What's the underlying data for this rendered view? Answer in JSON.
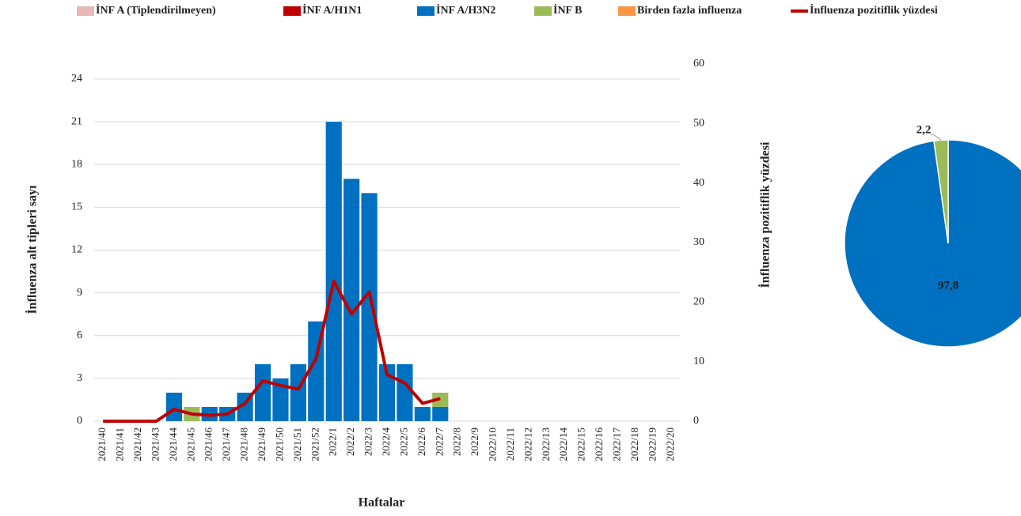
{
  "chart_data": [
    {
      "type": "bar-line",
      "x_label": "Haftalar",
      "y_label": "İnfluenza alt tipleri sayı",
      "y2_label": "İnfluenza pozitiflik yüzdesi",
      "categories": [
        "2021/40",
        "2021/41",
        "2021/42",
        "2021/43",
        "2021/44",
        "2021/45",
        "2021/46",
        "2021/47",
        "2021/48",
        "2021/49",
        "2021/50",
        "2021/51",
        "2021/52",
        "2022/1",
        "2022/2",
        "2022/3",
        "2022/4",
        "2022/5",
        "2022/6",
        "2022/7",
        "2022/8",
        "2022/9",
        "2022/10",
        "2022/11",
        "2022/12",
        "2022/13",
        "2022/14",
        "2022/15",
        "2022/16",
        "2022/17",
        "2022/18",
        "2022/19",
        "2022/20"
      ],
      "series": [
        {
          "name": "İNF A (Tiplendirilmeyen)",
          "color": "#e6b9b8",
          "values": [
            0,
            0,
            0,
            0,
            0,
            0,
            0,
            0,
            0,
            0,
            0,
            0,
            0,
            0,
            0,
            0,
            0,
            0,
            0,
            0,
            null,
            null,
            null,
            null,
            null,
            null,
            null,
            null,
            null,
            null,
            null,
            null,
            null
          ]
        },
        {
          "name": "İNF A/H1N1",
          "color": "#c00000",
          "values": [
            0,
            0,
            0,
            0,
            0,
            0,
            0,
            0,
            0,
            0,
            0,
            0,
            0,
            0,
            0,
            0,
            0,
            0,
            0,
            0,
            null,
            null,
            null,
            null,
            null,
            null,
            null,
            null,
            null,
            null,
            null,
            null,
            null
          ]
        },
        {
          "name": "İNF A/H3N2",
          "color": "#0070c0",
          "values": [
            0,
            0,
            0,
            0,
            2,
            0,
            1,
            1,
            2,
            4,
            3,
            4,
            7,
            21,
            17,
            16,
            4,
            4,
            1,
            1,
            null,
            null,
            null,
            null,
            null,
            null,
            null,
            null,
            null,
            null,
            null,
            null,
            null
          ]
        },
        {
          "name": "İNF B",
          "color": "#9bbb59",
          "values": [
            0,
            0,
            0,
            0,
            0,
            1,
            0,
            0,
            0,
            0,
            0,
            0,
            0,
            0,
            0,
            0,
            0,
            0,
            0,
            1,
            null,
            null,
            null,
            null,
            null,
            null,
            null,
            null,
            null,
            null,
            null,
            null,
            null
          ]
        },
        {
          "name": "Birden fazla influenza",
          "color": "#f79646",
          "values": [
            0,
            0,
            0,
            0,
            0,
            0,
            0,
            0,
            0,
            0,
            0,
            0,
            0,
            0,
            0,
            0,
            0,
            0,
            0,
            0,
            null,
            null,
            null,
            null,
            null,
            null,
            null,
            null,
            null,
            null,
            null,
            null,
            null
          ]
        },
        {
          "name": "İnfluenza pozitiflik yüzdesi",
          "color": "#c00000",
          "type": "line",
          "axis": "y2",
          "values": [
            0,
            0,
            0,
            0,
            2,
            1.2,
            1,
            1.2,
            3,
            6.8,
            6,
            5.4,
            10.5,
            23.5,
            18,
            21.7,
            7.8,
            6.4,
            3,
            3.8,
            null,
            null,
            null,
            null,
            null,
            null,
            null,
            null,
            null,
            null,
            null,
            null,
            null
          ]
        }
      ],
      "ylim": [
        0,
        24
      ],
      "yticks": [
        0,
        3,
        6,
        9,
        12,
        15,
        18,
        21,
        24
      ],
      "y2lim": [
        0,
        60
      ],
      "y2ticks": [
        0,
        10,
        20,
        30,
        40,
        50,
        60
      ],
      "grid": true,
      "legend": "top"
    },
    {
      "type": "pie",
      "values": [
        97.8,
        2.2
      ],
      "value_labels": [
        "97,8",
        "2,2"
      ],
      "colors": [
        "#0070c0",
        "#9bbb59"
      ]
    }
  ]
}
